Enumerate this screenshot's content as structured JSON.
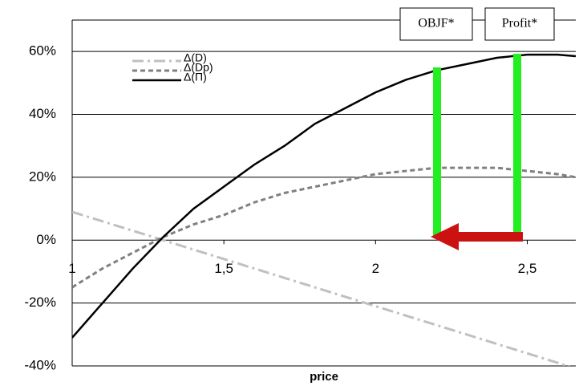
{
  "chart_data": {
    "type": "line",
    "x_label": "price",
    "x": [
      1,
      1.1,
      1.2,
      1.3,
      1.4,
      1.5,
      1.6,
      1.7,
      1.8,
      1.9,
      2.0,
      2.1,
      2.2,
      2.3,
      2.4,
      2.5,
      2.6,
      2.66
    ],
    "series": [
      {
        "name": "Δ(D)",
        "color": "#c0c0c0",
        "dash": "14 5 3 5",
        "width": 3,
        "values": [
          9,
          6,
          3,
          0,
          -3,
          -6,
          -9,
          -12,
          -15,
          -18,
          -21,
          -24,
          -27,
          -30,
          -33,
          -36,
          -39,
          -41
        ]
      },
      {
        "name": "Δ(Dp)",
        "color": "#808080",
        "dash": "6 4",
        "width": 3,
        "values": [
          -15,
          -9,
          -4,
          1,
          5,
          8,
          12,
          15,
          17,
          19,
          21,
          22,
          23,
          23,
          23,
          22,
          21,
          20
        ]
      },
      {
        "name": "Δ(Π)",
        "color": "#000000",
        "dash": "none",
        "width": 2.5,
        "values": [
          -31,
          -20,
          -9,
          1,
          10,
          17,
          24,
          30,
          37,
          42,
          47,
          51,
          54,
          56,
          58,
          59,
          59,
          58.5
        ]
      }
    ],
    "xlim": [
      1,
      2.66
    ],
    "ylim": [
      -40,
      70
    ],
    "xticks": [
      1,
      {
        "value": 1.5,
        "label": "1,5"
      },
      2,
      {
        "value": 2.5,
        "label": "2,5"
      }
    ],
    "yticks": [
      {
        "value": -40,
        "label": "-40%"
      },
      {
        "value": -20,
        "label": "-20%"
      },
      {
        "value": 0,
        "label": "0%"
      },
      {
        "value": 20,
        "label": "20%"
      },
      {
        "value": 40,
        "label": "40%"
      },
      {
        "value": 60,
        "label": "60%"
      }
    ],
    "grid": true,
    "legend": "top-left",
    "annotations": [
      "OBJF*",
      "Profit*"
    ]
  }
}
